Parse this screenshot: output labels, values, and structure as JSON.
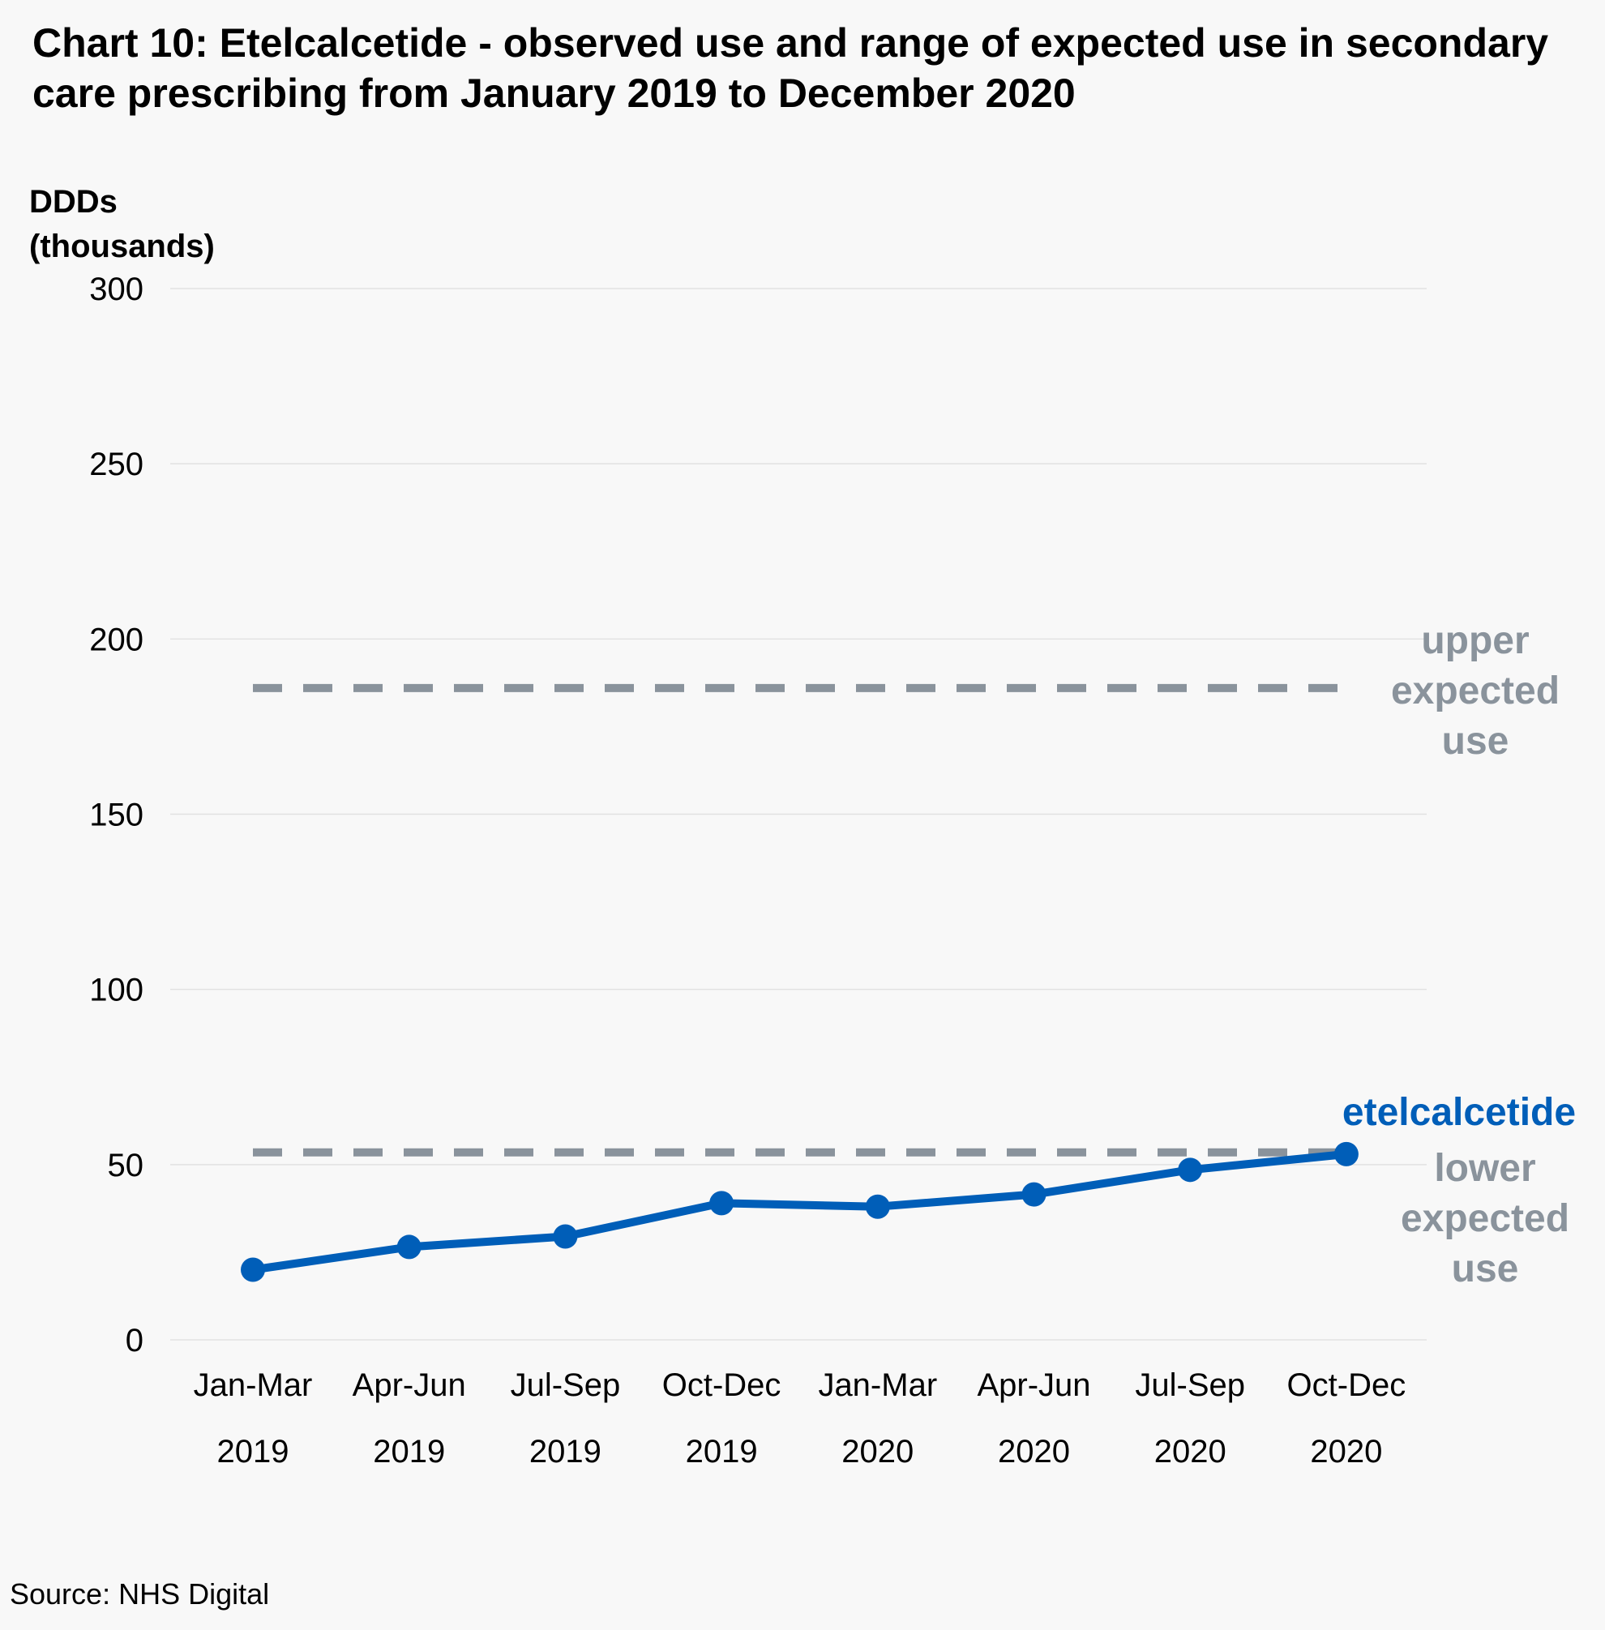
{
  "title": "Chart 10: Etelcalcetide - observed use and range of expected use in secondary care prescribing from January 2019 to December 2020",
  "source": "Source: NHS Digital",
  "chart_data": {
    "type": "line",
    "title": "Chart 10: Etelcalcetide - observed use and range of expected use in secondary care prescribing from January 2019 to December 2020",
    "ylabel_lines": [
      "DDDs",
      "(thousands)"
    ],
    "xlabel": "",
    "ylim": [
      0,
      300
    ],
    "yticks": [
      0,
      50,
      100,
      150,
      200,
      250,
      300
    ],
    "grid": true,
    "legend": "none (series labelled directly at right end)",
    "categories": [
      {
        "period": "Jan-Mar",
        "year": "2019"
      },
      {
        "period": "Apr-Jun",
        "year": "2019"
      },
      {
        "period": "Jul-Sep",
        "year": "2019"
      },
      {
        "period": "Oct-Dec",
        "year": "2019"
      },
      {
        "period": "Jan-Mar",
        "year": "2020"
      },
      {
        "period": "Apr-Jun",
        "year": "2020"
      },
      {
        "period": "Jul-Sep",
        "year": "2020"
      },
      {
        "period": "Oct-Dec",
        "year": "2020"
      }
    ],
    "series": [
      {
        "name": "etelcalcetide",
        "label_lines": [
          "etelcalcetide"
        ],
        "color": "#005eb8",
        "style": "solid-markers",
        "values": [
          20,
          26.5,
          29.5,
          39,
          38,
          41.5,
          48.5,
          53
        ]
      },
      {
        "name": "upper expected use",
        "label_lines": [
          "upper",
          "expected",
          "use"
        ],
        "color": "#8a939c",
        "style": "dashed",
        "values": [
          186,
          186,
          186,
          186,
          186,
          186,
          186,
          186
        ]
      },
      {
        "name": "lower expected use",
        "label_lines": [
          "lower",
          "expected",
          "use"
        ],
        "color": "#8a939c",
        "style": "dashed",
        "values": [
          53.5,
          53.5,
          53.5,
          53.5,
          53.5,
          53.5,
          53.5,
          53.5
        ]
      }
    ]
  }
}
